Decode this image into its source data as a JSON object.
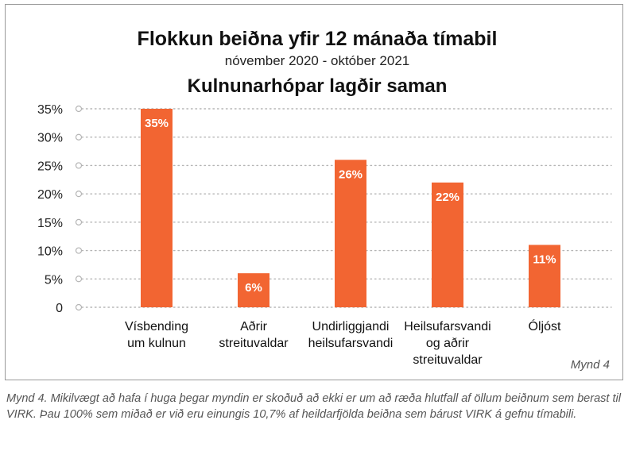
{
  "figure_label": "Mynd 4",
  "caption": "Mynd 4. Mikilvægt að hafa í huga þegar myndin er skoðuð að ekki er um að ræða hlutfall af öllum beiðnum sem berast til VIRK. Þau 100% sem miðað er við eru einungis 10,7% af heildarfjölda beiðna sem bárust VIRK á gefnu tímabili.",
  "chart_data": {
    "type": "bar",
    "title": "Flokkun beiðna yfir 12 mánaða tímabil",
    "subtitle": "nóvember 2020 - október 2021",
    "subtitle2": "Kulnunarhópar lagðir saman",
    "xlabel": "",
    "ylabel": "",
    "ylim": [
      0,
      35
    ],
    "yticks": [
      "0",
      "5%",
      "10%",
      "15%",
      "20%",
      "25%",
      "30%",
      "35%"
    ],
    "categories": [
      [
        "Vísbending",
        "um kulnun"
      ],
      [
        "Aðrir",
        "streituvaldar"
      ],
      [
        "Undirliggjandi",
        "heilsufarsvandi"
      ],
      [
        "Heilsufarsvandi",
        "og aðrir",
        "streituvaldar"
      ],
      [
        "Óljóst"
      ]
    ],
    "values": [
      35,
      6,
      26,
      22,
      11
    ],
    "data_labels": [
      "35%",
      "6%",
      "26%",
      "22%",
      "11%"
    ],
    "bar_color": "#f26532",
    "grid": true,
    "grid_color": "#b5b5b5",
    "legend": "none"
  }
}
